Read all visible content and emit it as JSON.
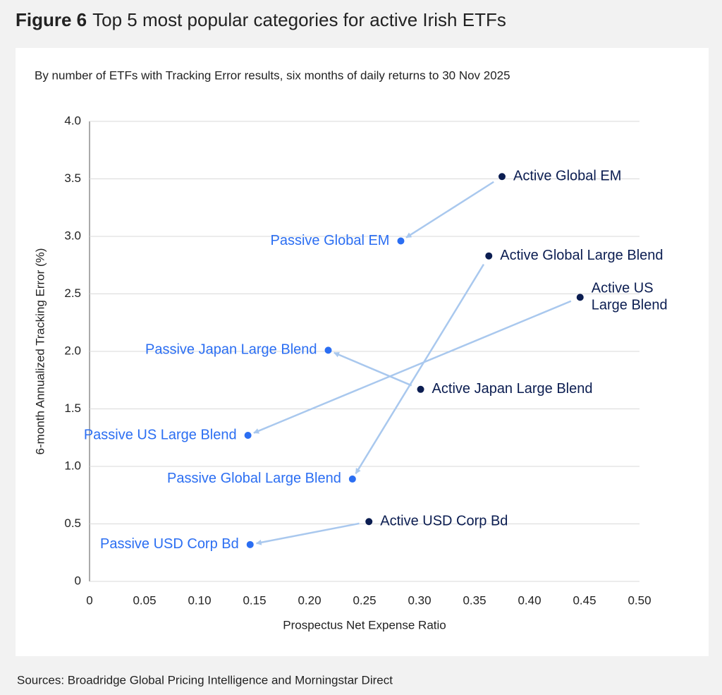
{
  "chart_data": {
    "type": "scatter",
    "figure_label": "Figure 6",
    "title": "Top 5 most popular categories for active Irish ETFs",
    "subtitle": "By number of ETFs with Tracking Error results, six months of daily returns to 30 Nov 2025",
    "x_label": "Prospectus Net Expense Ratio",
    "y_label": "6-month Annualized Tracking Error (%)",
    "source": "Sources: Broadridge Global Pricing Intelligence and Morningstar Direct",
    "xlim": [
      0,
      0.5
    ],
    "ylim": [
      0,
      4
    ],
    "xticks": [
      0,
      0.05,
      {
        "value": 0.1,
        "label": "0.10"
      },
      0.15,
      {
        "value": 0.2,
        "label": "0.20"
      },
      0.25,
      {
        "value": 0.3,
        "label": "0.30"
      },
      0.35,
      {
        "value": 0.4,
        "label": "0.40"
      },
      0.45,
      {
        "value": 0.5,
        "label": "0.50"
      }
    ],
    "yticks": [
      0,
      0.5,
      {
        "value": 1,
        "label": "1.0"
      },
      1.5,
      {
        "value": 2,
        "label": "2.0"
      },
      2.5,
      {
        "value": 3,
        "label": "3.0"
      },
      3.5,
      {
        "value": 4,
        "label": "4.0"
      }
    ],
    "grid": true,
    "active_color": "#0b1d51",
    "passive_color": "#2b6ef2",
    "arrow_color": "#a9c8ee",
    "pairs": [
      {
        "active": {
          "label": [
            "Active Global EM"
          ],
          "x": 0.375,
          "y": 3.52
        },
        "passive": {
          "label": [
            "Passive Global EM"
          ],
          "x": 0.283,
          "y": 2.96
        }
      },
      {
        "active": {
          "label": [
            "Active Global Large Blend"
          ],
          "x": 0.363,
          "y": 2.83
        },
        "passive": {
          "label": [
            "Passive Global Large Blend"
          ],
          "x": 0.239,
          "y": 0.89
        }
      },
      {
        "active": {
          "label": [
            "Active US",
            "Large Blend"
          ],
          "x": 0.446,
          "y": 2.47
        },
        "passive": {
          "label": [
            "Passive US Large Blend"
          ],
          "x": 0.144,
          "y": 1.27
        }
      },
      {
        "active": {
          "label": [
            "Active Japan Large Blend"
          ],
          "x": 0.301,
          "y": 1.67
        },
        "passive": {
          "label": [
            "Passive Japan Large Blend"
          ],
          "x": 0.217,
          "y": 2.01
        }
      },
      {
        "active": {
          "label": [
            "Active USD Corp Bd"
          ],
          "x": 0.254,
          "y": 0.52
        },
        "passive": {
          "label": [
            "Passive USD Corp Bd"
          ],
          "x": 0.146,
          "y": 0.32
        }
      }
    ]
  }
}
